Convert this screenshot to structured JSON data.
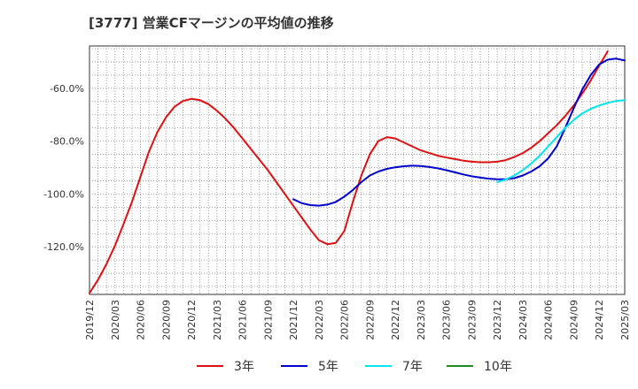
{
  "chart_data": {
    "type": "line",
    "title": "[3777]  営業CFマージンの平均値の推移",
    "xlabel": "",
    "ylabel": "",
    "x_ticks": [
      "2019/12",
      "2020/03",
      "2020/06",
      "2020/09",
      "2020/12",
      "2021/03",
      "2021/06",
      "2021/09",
      "2021/12",
      "2022/03",
      "2022/06",
      "2022/09",
      "2022/12",
      "2023/03",
      "2023/06",
      "2023/09",
      "2023/12",
      "2024/03",
      "2024/06",
      "2024/09",
      "2024/12",
      "2025/03"
    ],
    "y_ticks": [
      {
        "value": -60,
        "label": "-60.0%"
      },
      {
        "value": -80,
        "label": "-80.0%"
      },
      {
        "value": -100,
        "label": "-100.0%"
      },
      {
        "value": -120,
        "label": "-120.0%"
      }
    ],
    "ylim": [
      -138,
      -44
    ],
    "grid": true,
    "legend_position": "bottom",
    "series": [
      {
        "name": "3年",
        "color": "#dd1111",
        "points": [
          [
            "2019/12",
            -137.5
          ],
          [
            "2020/01",
            -132.5
          ],
          [
            "2020/02",
            -126.5
          ],
          [
            "2020/03",
            -119.5
          ],
          [
            "2020/04",
            -111.5
          ],
          [
            "2020/05",
            -103.0
          ],
          [
            "2020/06",
            -93.5
          ],
          [
            "2020/07",
            -84.0
          ],
          [
            "2020/08",
            -76.5
          ],
          [
            "2020/09",
            -71.0
          ],
          [
            "2020/10",
            -67.0
          ],
          [
            "2020/11",
            -64.8
          ],
          [
            "2020/12",
            -64.0
          ],
          [
            "2021/01",
            -64.5
          ],
          [
            "2021/02",
            -66.0
          ],
          [
            "2021/03",
            -68.5
          ],
          [
            "2021/04",
            -71.5
          ],
          [
            "2021/05",
            -75.0
          ],
          [
            "2021/06",
            -79.0
          ],
          [
            "2021/07",
            -83.0
          ],
          [
            "2021/08",
            -87.0
          ],
          [
            "2021/09",
            -91.0
          ],
          [
            "2021/10",
            -95.5
          ],
          [
            "2021/11",
            -100.0
          ],
          [
            "2021/12",
            -104.5
          ],
          [
            "2022/01",
            -109.0
          ],
          [
            "2022/02",
            -113.5
          ],
          [
            "2022/03",
            -117.5
          ],
          [
            "2022/04",
            -119.0
          ],
          [
            "2022/05",
            -118.5
          ],
          [
            "2022/06",
            -114.0
          ],
          [
            "2022/07",
            -103.0
          ],
          [
            "2022/08",
            -93.0
          ],
          [
            "2022/09",
            -85.0
          ],
          [
            "2022/10",
            -80.0
          ],
          [
            "2022/11",
            -78.5
          ],
          [
            "2022/12",
            -79.0
          ],
          [
            "2023/01",
            -80.5
          ],
          [
            "2023/02",
            -82.0
          ],
          [
            "2023/03",
            -83.5
          ],
          [
            "2023/04",
            -84.5
          ],
          [
            "2023/05",
            -85.5
          ],
          [
            "2023/06",
            -86.2
          ],
          [
            "2023/07",
            -86.8
          ],
          [
            "2023/08",
            -87.4
          ],
          [
            "2023/09",
            -87.8
          ],
          [
            "2023/10",
            -88.0
          ],
          [
            "2023/11",
            -88.0
          ],
          [
            "2023/12",
            -87.8
          ],
          [
            "2024/01",
            -87.2
          ],
          [
            "2024/02",
            -86.0
          ],
          [
            "2024/03",
            -84.5
          ],
          [
            "2024/04",
            -82.5
          ],
          [
            "2024/05",
            -80.0
          ],
          [
            "2024/06",
            -77.0
          ],
          [
            "2024/07",
            -74.0
          ],
          [
            "2024/08",
            -70.5
          ],
          [
            "2024/09",
            -66.5
          ],
          [
            "2024/10",
            -62.0
          ],
          [
            "2024/11",
            -57.0
          ],
          [
            "2024/12",
            -51.5
          ],
          [
            "2025/01",
            -46.0
          ]
        ]
      },
      {
        "name": "5年",
        "color": "#0000cc",
        "points": [
          [
            "2021/12",
            -102.0
          ],
          [
            "2022/01",
            -103.5
          ],
          [
            "2022/02",
            -104.2
          ],
          [
            "2022/03",
            -104.4
          ],
          [
            "2022/04",
            -104.0
          ],
          [
            "2022/05",
            -103.0
          ],
          [
            "2022/06",
            -101.0
          ],
          [
            "2022/07",
            -98.5
          ],
          [
            "2022/08",
            -95.5
          ],
          [
            "2022/09",
            -93.0
          ],
          [
            "2022/10",
            -91.5
          ],
          [
            "2022/11",
            -90.5
          ],
          [
            "2022/12",
            -89.9
          ],
          [
            "2023/01",
            -89.5
          ],
          [
            "2023/02",
            -89.3
          ],
          [
            "2023/03",
            -89.4
          ],
          [
            "2023/04",
            -89.8
          ],
          [
            "2023/05",
            -90.3
          ],
          [
            "2023/06",
            -91.0
          ],
          [
            "2023/07",
            -91.8
          ],
          [
            "2023/08",
            -92.6
          ],
          [
            "2023/09",
            -93.3
          ],
          [
            "2023/10",
            -93.8
          ],
          [
            "2023/11",
            -94.2
          ],
          [
            "2023/12",
            -94.4
          ],
          [
            "2024/01",
            -94.4
          ],
          [
            "2024/02",
            -94.0
          ],
          [
            "2024/03",
            -93.0
          ],
          [
            "2024/04",
            -91.5
          ],
          [
            "2024/05",
            -89.5
          ],
          [
            "2024/06",
            -86.5
          ],
          [
            "2024/07",
            -82.0
          ],
          [
            "2024/08",
            -75.0
          ],
          [
            "2024/09",
            -67.5
          ],
          [
            "2024/10",
            -60.5
          ],
          [
            "2024/11",
            -55.0
          ],
          [
            "2024/12",
            -51.0
          ],
          [
            "2025/01",
            -49.2
          ],
          [
            "2025/02",
            -48.8
          ],
          [
            "2025/03",
            -49.5
          ]
        ]
      },
      {
        "name": "7年",
        "color": "#00e5ee",
        "points": [
          [
            "2023/12",
            -95.5
          ],
          [
            "2024/01",
            -94.5
          ],
          [
            "2024/02",
            -93.0
          ],
          [
            "2024/03",
            -91.0
          ],
          [
            "2024/04",
            -88.5
          ],
          [
            "2024/05",
            -85.5
          ],
          [
            "2024/06",
            -82.0
          ],
          [
            "2024/07",
            -78.5
          ],
          [
            "2024/08",
            -75.0
          ],
          [
            "2024/09",
            -72.0
          ],
          [
            "2024/10",
            -69.5
          ],
          [
            "2024/11",
            -67.8
          ],
          [
            "2024/12",
            -66.5
          ],
          [
            "2025/01",
            -65.5
          ],
          [
            "2025/02",
            -64.8
          ],
          [
            "2025/03",
            -64.5
          ]
        ]
      },
      {
        "name": "10年",
        "color": "#228822",
        "points": []
      }
    ]
  }
}
